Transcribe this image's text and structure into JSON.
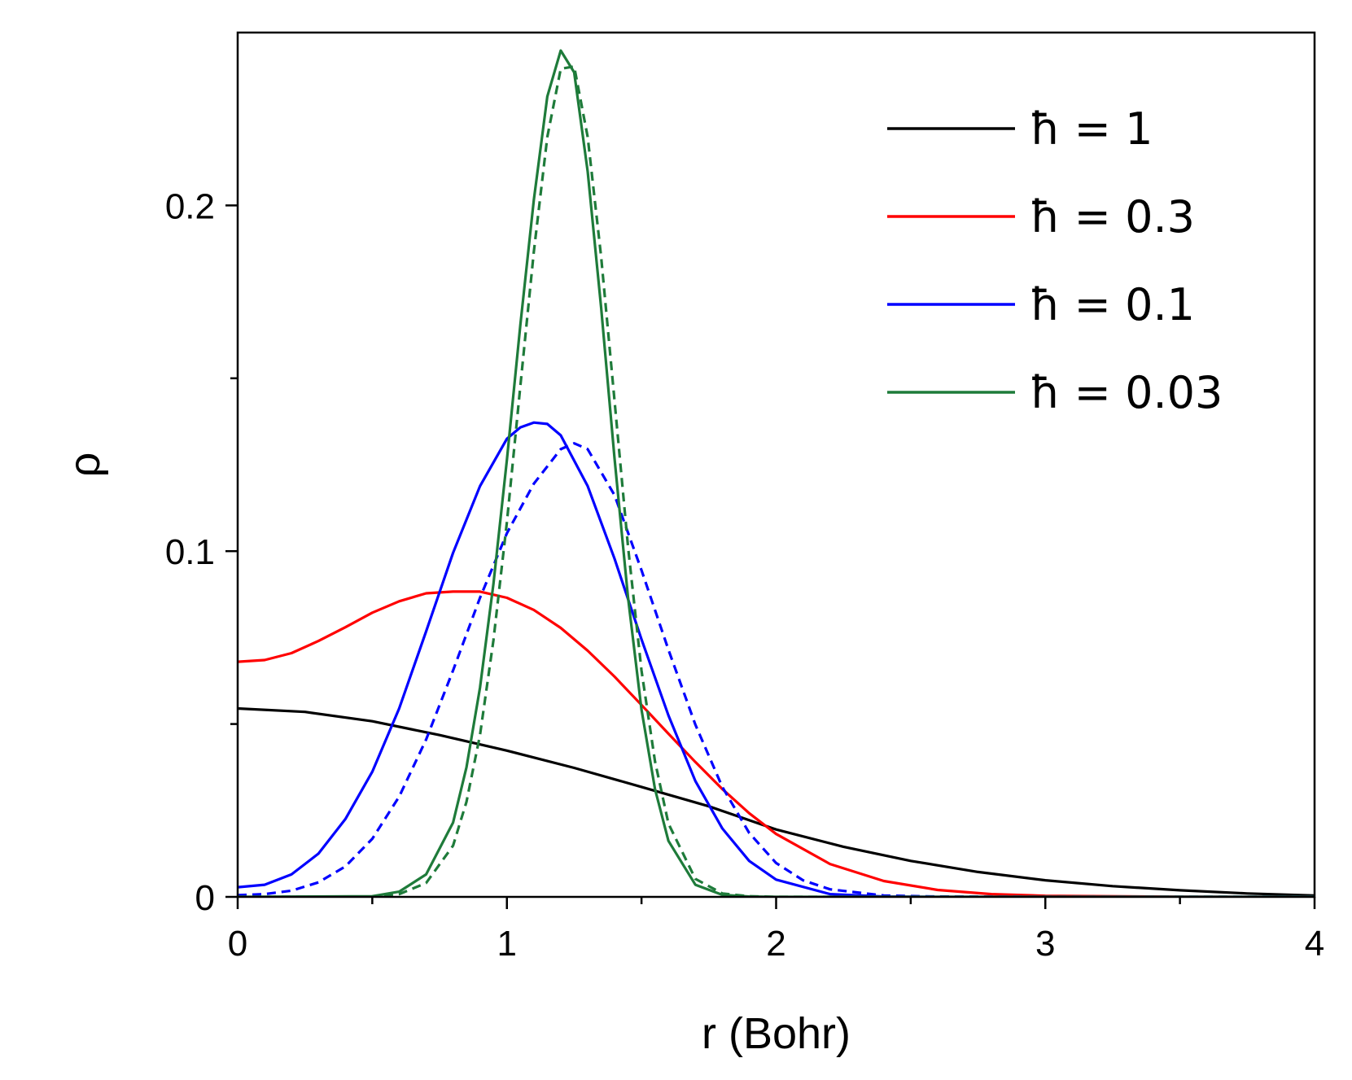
{
  "chart_data": {
    "type": "line",
    "title": "",
    "xlabel": "r (Bohr)",
    "ylabel": "ρ",
    "xlim": [
      0,
      4
    ],
    "ylim": [
      0,
      0.25
    ],
    "x_ticks": [
      "0",
      "1",
      "2",
      "3",
      "4"
    ],
    "y_ticks": [
      "0",
      "0.1",
      "0.2"
    ],
    "y_tick_values": [
      0,
      0.1,
      0.2
    ],
    "x_minor_ticks": [
      0.5,
      1.5,
      2.5,
      3.5
    ],
    "y_minor_ticks": [
      0.05,
      0.15
    ],
    "grid": false,
    "legend_position": "top-right",
    "series": [
      {
        "name": "ħ = 1",
        "color": "#000000",
        "dash": "solid",
        "x": [
          0,
          0.25,
          0.5,
          0.75,
          1.0,
          1.25,
          1.5,
          1.75,
          2.0,
          2.25,
          2.5,
          2.75,
          3.0,
          3.25,
          3.5,
          3.75,
          4.0
        ],
        "y": [
          0.0545,
          0.0535,
          0.0508,
          0.0468,
          0.0423,
          0.0373,
          0.0318,
          0.0262,
          0.0195,
          0.0145,
          0.0104,
          0.0072,
          0.0048,
          0.0031,
          0.0019,
          0.001,
          0.0004
        ]
      },
      {
        "name": "ħ = 0.3",
        "color": "#ff0000",
        "dash": "solid",
        "x": [
          0,
          0.1,
          0.2,
          0.3,
          0.4,
          0.5,
          0.6,
          0.7,
          0.8,
          0.9,
          1.0,
          1.1,
          1.2,
          1.3,
          1.4,
          1.5,
          1.6,
          1.7,
          1.8,
          1.9,
          2.0,
          2.2,
          2.4,
          2.6,
          2.8,
          3.0,
          3.5,
          4.0
        ],
        "y": [
          0.068,
          0.0685,
          0.0705,
          0.074,
          0.078,
          0.0822,
          0.0855,
          0.0878,
          0.0883,
          0.0883,
          0.0865,
          0.083,
          0.0778,
          0.0712,
          0.0637,
          0.0555,
          0.0472,
          0.039,
          0.0312,
          0.0242,
          0.0182,
          0.0095,
          0.0046,
          0.002,
          0.0008,
          0.0003,
          3e-05,
          0
        ]
      },
      {
        "name": "ħ = 0.1",
        "color": "#0000ff",
        "dash": "solid",
        "x": [
          0,
          0.1,
          0.2,
          0.3,
          0.4,
          0.5,
          0.6,
          0.7,
          0.8,
          0.9,
          1.0,
          1.05,
          1.1,
          1.15,
          1.2,
          1.3,
          1.4,
          1.5,
          1.6,
          1.7,
          1.8,
          1.9,
          2.0,
          2.2,
          2.4,
          2.6,
          3.0,
          4.0
        ],
        "y": [
          0.0028,
          0.0035,
          0.0065,
          0.0125,
          0.0225,
          0.0362,
          0.0545,
          0.0768,
          0.0995,
          0.1188,
          0.1325,
          0.1358,
          0.1372,
          0.1368,
          0.1335,
          0.1188,
          0.0978,
          0.0745,
          0.0525,
          0.0335,
          0.0198,
          0.0104,
          0.005,
          0.0008,
          0.0001,
          0,
          0,
          0
        ]
      },
      {
        "name": "",
        "color": "#0000ff",
        "dash": "dashed",
        "x": [
          0,
          0.1,
          0.2,
          0.3,
          0.4,
          0.5,
          0.6,
          0.7,
          0.8,
          0.9,
          1.0,
          1.1,
          1.2,
          1.25,
          1.3,
          1.4,
          1.5,
          1.6,
          1.7,
          1.8,
          1.9,
          2.0,
          2.1,
          2.2,
          2.4,
          2.6,
          3.0,
          4.0
        ],
        "y": [
          0.0005,
          0.0008,
          0.0018,
          0.0042,
          0.0088,
          0.0168,
          0.029,
          0.0455,
          0.0655,
          0.0865,
          0.1052,
          0.1195,
          0.1295,
          0.1312,
          0.1295,
          0.1162,
          0.0945,
          0.0715,
          0.0498,
          0.0318,
          0.0185,
          0.0098,
          0.0048,
          0.0022,
          0.0004,
          0.0001,
          0,
          0
        ]
      },
      {
        "name": "ħ = 0.03",
        "color": "#1e7b3a",
        "dash": "solid",
        "x": [
          0,
          0.5,
          0.6,
          0.7,
          0.8,
          0.85,
          0.9,
          0.95,
          1.0,
          1.05,
          1.1,
          1.15,
          1.2,
          1.25,
          1.3,
          1.35,
          1.4,
          1.45,
          1.5,
          1.55,
          1.6,
          1.7,
          1.8,
          1.9,
          2.0,
          2.5,
          4.0
        ],
        "y": [
          0,
          0.0002,
          0.0015,
          0.0065,
          0.0215,
          0.0375,
          0.0605,
          0.0905,
          0.1265,
          0.1655,
          0.2015,
          0.2315,
          0.2448,
          0.2385,
          0.2098,
          0.1705,
          0.1268,
          0.0865,
          0.0542,
          0.0312,
          0.0162,
          0.0035,
          0.0006,
          0.0001,
          0,
          0,
          0
        ]
      },
      {
        "name": "",
        "color": "#1e7b3a",
        "dash": "dashed",
        "x": [
          0,
          0.5,
          0.6,
          0.7,
          0.8,
          0.85,
          0.9,
          0.95,
          1.0,
          1.05,
          1.1,
          1.15,
          1.2,
          1.25,
          1.3,
          1.35,
          1.4,
          1.45,
          1.5,
          1.55,
          1.6,
          1.7,
          1.8,
          1.9,
          2.0,
          2.5,
          4.0
        ],
        "y": [
          0,
          0.0001,
          0.0008,
          0.004,
          0.0148,
          0.0275,
          0.0468,
          0.0742,
          0.1085,
          0.1478,
          0.1865,
          0.2198,
          0.2395,
          0.2402,
          0.2198,
          0.1852,
          0.1435,
          0.1012,
          0.0655,
          0.0392,
          0.0212,
          0.0052,
          0.001,
          0.0002,
          0,
          0,
          0
        ]
      }
    ]
  }
}
